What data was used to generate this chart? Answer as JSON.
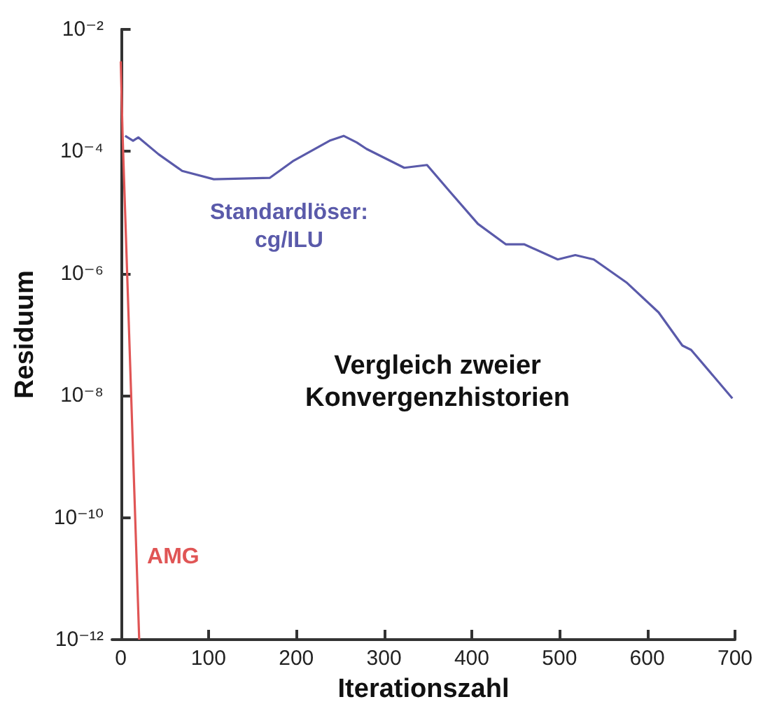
{
  "chart_data": {
    "type": "line",
    "xlabel": "Iterationszahl",
    "ylabel": "Residuum",
    "annotations": [
      "Vergleich zweier\nKonvergenzhistorien"
    ],
    "log": "y",
    "grid": false,
    "legend": false,
    "marker": "none",
    "line_style": "solid",
    "xlim": [
      -10,
      700
    ],
    "xticks": [
      0,
      100,
      200,
      300,
      400,
      500,
      600,
      700
    ],
    "ylim": [
      1e-12,
      0.01
    ],
    "yticks": [
      {
        "value": 0.01,
        "label": "10⁻²"
      },
      {
        "value": 0.0001,
        "label": "10⁻⁴"
      },
      {
        "value": 1e-06,
        "label": "10⁻⁶"
      },
      {
        "value": 1e-08,
        "label": "10⁻⁸"
      },
      {
        "value": 1e-10,
        "label": "10⁻¹⁰"
      },
      {
        "value": 1e-12,
        "label": "10⁻¹²"
      }
    ],
    "series": [
      {
        "name": "Standardlöser:\ncg/ILU",
        "color": "#5a5aaa",
        "x": [
          5,
          14,
          20,
          43,
          70,
          106,
          170,
          196,
          238,
          254,
          269,
          280,
          323,
          349,
          375,
          407,
          439,
          460,
          498,
          518,
          539,
          577,
          613,
          640,
          650,
          697
        ],
        "values": [
          0.00018,
          0.00015,
          0.00017,
          9e-05,
          4.8e-05,
          3.5e-05,
          3.7e-05,
          6.9e-05,
          0.00015,
          0.00018,
          0.00014,
          0.00011,
          5.4e-05,
          6e-05,
          2.2e-05,
          6.5e-06,
          3e-06,
          3e-06,
          1.7e-06,
          2e-06,
          1.7e-06,
          7e-07,
          2.3e-07,
          6.6e-08,
          5.6e-08,
          9e-09
        ]
      },
      {
        "name": "AMG",
        "color": "#e05555",
        "x": [
          0,
          2,
          21
        ],
        "values": [
          0.003,
          0.0002,
          1e-12
        ]
      }
    ]
  }
}
